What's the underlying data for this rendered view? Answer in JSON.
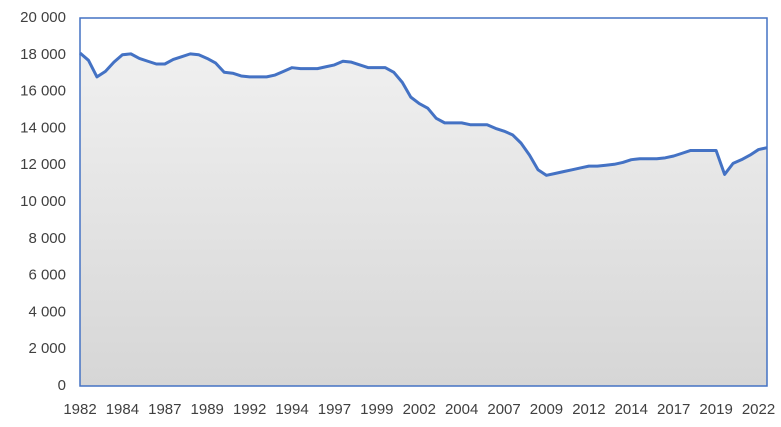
{
  "chart_data": {
    "type": "area",
    "categories": [
      "1982",
      null,
      null,
      null,
      null,
      "1984",
      null,
      null,
      null,
      null,
      "1987",
      null,
      null,
      null,
      null,
      "1989",
      null,
      null,
      null,
      null,
      "1992",
      null,
      null,
      null,
      null,
      "1994",
      null,
      null,
      null,
      null,
      "1997",
      null,
      null,
      null,
      null,
      "1999",
      null,
      null,
      null,
      null,
      "2002",
      null,
      null,
      null,
      null,
      "2004",
      null,
      null,
      null,
      null,
      "2007",
      null,
      null,
      null,
      null,
      "2009",
      null,
      null,
      null,
      null,
      "2012",
      null,
      null,
      null,
      null,
      "2014",
      null,
      null,
      null,
      null,
      "2017",
      null,
      null,
      null,
      null,
      "2019",
      null,
      null,
      null,
      null,
      "2022",
      null
    ],
    "values": [
      18100,
      17700,
      16800,
      17100,
      17600,
      18000,
      18050,
      17800,
      17650,
      17500,
      17500,
      17750,
      17900,
      18050,
      18000,
      17800,
      17550,
      17050,
      17000,
      16850,
      16800,
      16800,
      16800,
      16900,
      17100,
      17300,
      17250,
      17250,
      17250,
      17350,
      17450,
      17650,
      17600,
      17450,
      17300,
      17300,
      17300,
      17050,
      16500,
      15700,
      15350,
      15100,
      14550,
      14300,
      14300,
      14300,
      14200,
      14200,
      14200,
      14000,
      13850,
      13650,
      13200,
      12550,
      11750,
      11450,
      11550,
      11650,
      11750,
      11850,
      11950,
      11950,
      12000,
      12050,
      12150,
      12300,
      12350,
      12350,
      12350,
      12400,
      12500,
      12650,
      12800,
      12800,
      12800,
      12800,
      11500,
      12100,
      12300,
      12550,
      12850,
      12950
    ],
    "color": "#4472c4",
    "ylim": [
      0,
      20000
    ],
    "yticks": [
      0,
      {
        "value": 2000,
        "label": "2 000"
      },
      {
        "value": 4000,
        "label": "4 000"
      },
      {
        "value": 6000,
        "label": "6 000"
      },
      {
        "value": 8000,
        "label": "8 000"
      },
      {
        "value": 10000,
        "label": "10 000"
      },
      {
        "value": 12000,
        "label": "12 000"
      },
      {
        "value": 14000,
        "label": "14 000"
      },
      {
        "value": 16000,
        "label": "16 000"
      },
      {
        "value": 18000,
        "label": "18 000"
      },
      {
        "value": 20000,
        "label": "20 000"
      }
    ],
    "grid": false
  }
}
